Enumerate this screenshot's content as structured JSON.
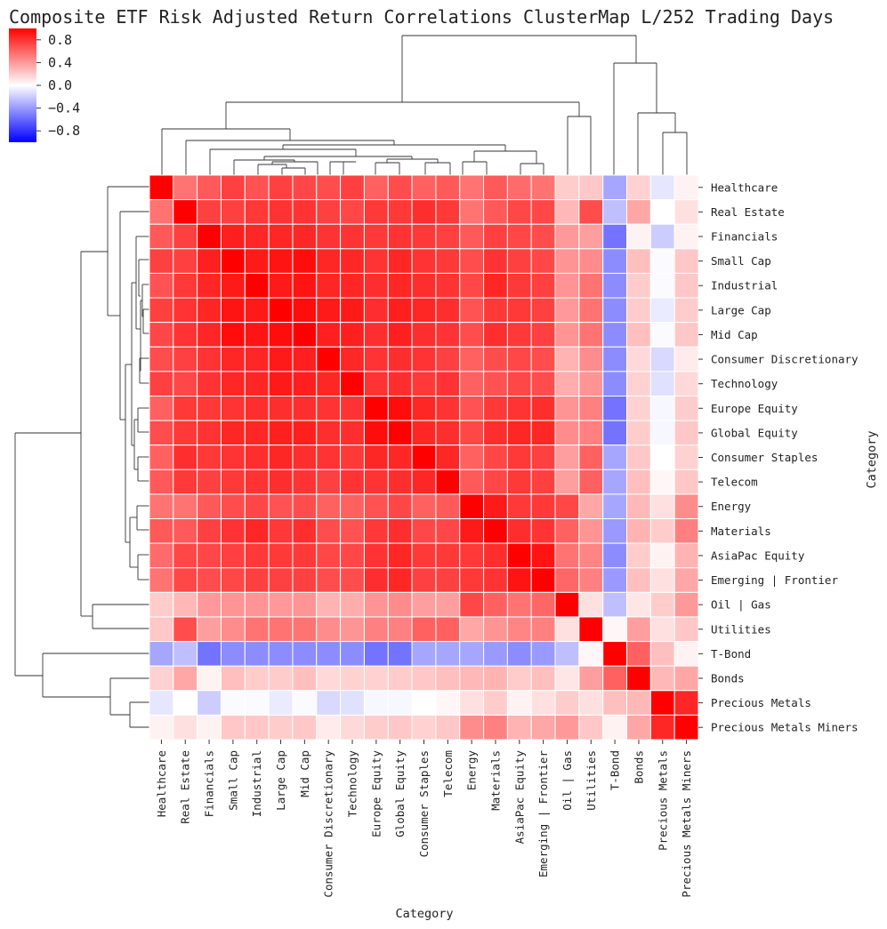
{
  "chart_data": {
    "type": "heatmap",
    "title": "Composite ETF Risk Adjusted Return Correlations ClusterMap L/252 Trading Days",
    "xlabel": "Category",
    "ylabel": "Category",
    "colormap": {
      "low": "#0000ff",
      "mid": "#ffffff",
      "high": "#ff0000"
    },
    "vmin": -1,
    "vmax": 1,
    "colorbar_ticks": [
      "0.8",
      "0.4",
      "0.0",
      "−0.4",
      "−0.8"
    ],
    "colorbar_tick_values": [
      0.8,
      0.4,
      0.0,
      -0.4,
      -0.8
    ],
    "categories": [
      "Healthcare",
      "Real Estate",
      "Financials",
      "Small Cap",
      "Industrial",
      "Large Cap",
      "Mid Cap",
      "Consumer Discretionary",
      "Technology",
      "Europe Equity",
      "Global Equity",
      "Consumer Staples",
      "Telecom",
      "Energy",
      "Materials",
      "AsiaPac Equity",
      "Emerging | Frontier",
      "Oil | Gas",
      "Utilities",
      "T-Bond",
      "Bonds",
      "Precious Metals",
      "Precious Metals Miners"
    ],
    "matrix": [
      [
        1.0,
        0.55,
        0.65,
        0.75,
        0.68,
        0.75,
        0.72,
        0.7,
        0.75,
        0.62,
        0.7,
        0.62,
        0.65,
        0.55,
        0.65,
        0.58,
        0.55,
        0.2,
        0.22,
        -0.35,
        0.18,
        -0.1,
        0.05
      ],
      [
        0.55,
        1.0,
        0.75,
        0.75,
        0.78,
        0.8,
        0.8,
        0.75,
        0.72,
        0.78,
        0.78,
        0.82,
        0.78,
        0.55,
        0.65,
        0.72,
        0.72,
        0.28,
        0.7,
        -0.25,
        0.35,
        0.0,
        0.12
      ],
      [
        0.65,
        0.75,
        1.0,
        0.88,
        0.85,
        0.85,
        0.85,
        0.8,
        0.8,
        0.78,
        0.8,
        0.78,
        0.75,
        0.65,
        0.75,
        0.72,
        0.7,
        0.4,
        0.38,
        -0.55,
        0.05,
        -0.2,
        0.05
      ],
      [
        0.75,
        0.75,
        0.88,
        1.0,
        0.9,
        0.92,
        0.95,
        0.85,
        0.85,
        0.8,
        0.85,
        0.8,
        0.78,
        0.7,
        0.8,
        0.75,
        0.72,
        0.42,
        0.45,
        -0.45,
        0.25,
        -0.02,
        0.22
      ],
      [
        0.68,
        0.78,
        0.85,
        0.9,
        1.0,
        0.9,
        0.92,
        0.85,
        0.85,
        0.82,
        0.85,
        0.82,
        0.8,
        0.72,
        0.85,
        0.78,
        0.75,
        0.42,
        0.55,
        -0.45,
        0.2,
        -0.02,
        0.22
      ],
      [
        0.75,
        0.8,
        0.85,
        0.92,
        0.9,
        1.0,
        0.95,
        0.9,
        0.9,
        0.82,
        0.88,
        0.85,
        0.82,
        0.68,
        0.78,
        0.78,
        0.75,
        0.4,
        0.55,
        -0.45,
        0.2,
        -0.08,
        0.2
      ],
      [
        0.72,
        0.8,
        0.85,
        0.95,
        0.92,
        0.95,
        1.0,
        0.88,
        0.88,
        0.82,
        0.88,
        0.82,
        0.8,
        0.7,
        0.82,
        0.78,
        0.75,
        0.42,
        0.55,
        -0.45,
        0.25,
        -0.02,
        0.22
      ],
      [
        0.7,
        0.75,
        0.8,
        0.85,
        0.85,
        0.9,
        0.88,
        1.0,
        0.85,
        0.8,
        0.82,
        0.8,
        0.75,
        0.62,
        0.7,
        0.72,
        0.7,
        0.3,
        0.45,
        -0.45,
        0.15,
        -0.15,
        0.08
      ],
      [
        0.75,
        0.72,
        0.8,
        0.85,
        0.85,
        0.9,
        0.88,
        0.85,
        1.0,
        0.8,
        0.82,
        0.78,
        0.8,
        0.62,
        0.68,
        0.72,
        0.7,
        0.32,
        0.42,
        -0.45,
        0.18,
        -0.12,
        0.15
      ],
      [
        0.62,
        0.78,
        0.78,
        0.8,
        0.82,
        0.82,
        0.82,
        0.8,
        0.8,
        1.0,
        0.95,
        0.85,
        0.8,
        0.68,
        0.78,
        0.8,
        0.82,
        0.42,
        0.5,
        -0.55,
        0.18,
        -0.03,
        0.2
      ],
      [
        0.7,
        0.78,
        0.8,
        0.85,
        0.85,
        0.88,
        0.88,
        0.82,
        0.82,
        0.95,
        1.0,
        0.85,
        0.82,
        0.72,
        0.82,
        0.85,
        0.85,
        0.45,
        0.5,
        -0.55,
        0.2,
        -0.03,
        0.22
      ],
      [
        0.62,
        0.82,
        0.78,
        0.8,
        0.82,
        0.85,
        0.82,
        0.8,
        0.78,
        0.85,
        0.85,
        1.0,
        0.85,
        0.62,
        0.72,
        0.78,
        0.75,
        0.38,
        0.62,
        -0.35,
        0.22,
        0.0,
        0.18
      ],
      [
        0.65,
        0.78,
        0.75,
        0.78,
        0.8,
        0.82,
        0.8,
        0.75,
        0.8,
        0.8,
        0.82,
        0.85,
        1.0,
        0.65,
        0.72,
        0.78,
        0.75,
        0.38,
        0.62,
        -0.35,
        0.25,
        0.03,
        0.22
      ],
      [
        0.55,
        0.55,
        0.65,
        0.7,
        0.72,
        0.68,
        0.7,
        0.62,
        0.62,
        0.68,
        0.72,
        0.62,
        0.65,
        1.0,
        0.9,
        0.78,
        0.78,
        0.72,
        0.35,
        -0.35,
        0.28,
        0.12,
        0.45
      ],
      [
        0.65,
        0.65,
        0.75,
        0.8,
        0.85,
        0.78,
        0.82,
        0.7,
        0.68,
        0.78,
        0.82,
        0.72,
        0.72,
        0.9,
        1.0,
        0.82,
        0.8,
        0.62,
        0.42,
        -0.4,
        0.3,
        0.2,
        0.5
      ],
      [
        0.58,
        0.72,
        0.72,
        0.75,
        0.78,
        0.78,
        0.78,
        0.72,
        0.72,
        0.8,
        0.85,
        0.78,
        0.78,
        0.78,
        0.82,
        1.0,
        0.92,
        0.55,
        0.48,
        -0.45,
        0.2,
        0.05,
        0.3
      ],
      [
        0.55,
        0.72,
        0.7,
        0.72,
        0.75,
        0.75,
        0.75,
        0.7,
        0.7,
        0.82,
        0.85,
        0.75,
        0.75,
        0.78,
        0.8,
        0.92,
        1.0,
        0.6,
        0.5,
        -0.4,
        0.25,
        0.12,
        0.35
      ],
      [
        0.2,
        0.28,
        0.4,
        0.42,
        0.42,
        0.4,
        0.42,
        0.3,
        0.32,
        0.42,
        0.45,
        0.38,
        0.38,
        0.72,
        0.62,
        0.55,
        0.6,
        1.0,
        0.12,
        -0.25,
        0.1,
        0.2,
        0.4
      ],
      [
        0.22,
        0.7,
        0.38,
        0.45,
        0.55,
        0.55,
        0.55,
        0.45,
        0.42,
        0.5,
        0.5,
        0.62,
        0.62,
        0.35,
        0.42,
        0.48,
        0.5,
        0.12,
        1.0,
        0.03,
        0.38,
        0.12,
        0.22
      ],
      [
        -0.35,
        -0.25,
        -0.55,
        -0.45,
        -0.45,
        -0.45,
        -0.45,
        -0.45,
        -0.45,
        -0.55,
        -0.55,
        -0.35,
        -0.35,
        -0.35,
        -0.4,
        -0.45,
        -0.4,
        -0.25,
        0.03,
        1.0,
        0.62,
        0.25,
        0.05
      ],
      [
        0.18,
        0.35,
        0.05,
        0.25,
        0.2,
        0.2,
        0.25,
        0.15,
        0.18,
        0.18,
        0.2,
        0.22,
        0.25,
        0.28,
        0.3,
        0.2,
        0.25,
        0.1,
        0.38,
        0.62,
        1.0,
        0.28,
        0.35
      ],
      [
        -0.1,
        0.0,
        -0.2,
        -0.02,
        -0.02,
        -0.08,
        -0.02,
        -0.15,
        -0.12,
        -0.03,
        -0.03,
        0.0,
        0.03,
        0.12,
        0.2,
        0.05,
        0.12,
        0.2,
        0.12,
        0.25,
        0.28,
        1.0,
        0.85
      ],
      [
        0.05,
        0.12,
        0.05,
        0.22,
        0.22,
        0.2,
        0.22,
        0.08,
        0.15,
        0.2,
        0.22,
        0.18,
        0.22,
        0.45,
        0.5,
        0.3,
        0.35,
        0.4,
        0.22,
        0.05,
        0.35,
        0.85,
        1.0
      ]
    ]
  }
}
